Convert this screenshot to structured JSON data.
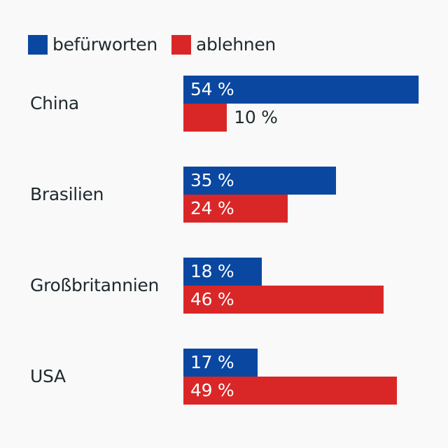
{
  "chart_data": {
    "type": "bar",
    "orientation": "horizontal",
    "title": "",
    "xlabel": "",
    "ylabel": "",
    "xlim": [
      0,
      54
    ],
    "grid": false,
    "legend_position": "top-left",
    "unit_suffix": " %",
    "categories": [
      "China",
      "Brasilien",
      "Großbritannien",
      "USA"
    ],
    "series": [
      {
        "name": "befürworten",
        "color": "#0a47a1",
        "values": [
          54,
          35,
          18,
          17
        ]
      },
      {
        "name": "ablehnen",
        "color": "#d92727",
        "values": [
          10,
          24,
          46,
          49
        ]
      }
    ]
  }
}
